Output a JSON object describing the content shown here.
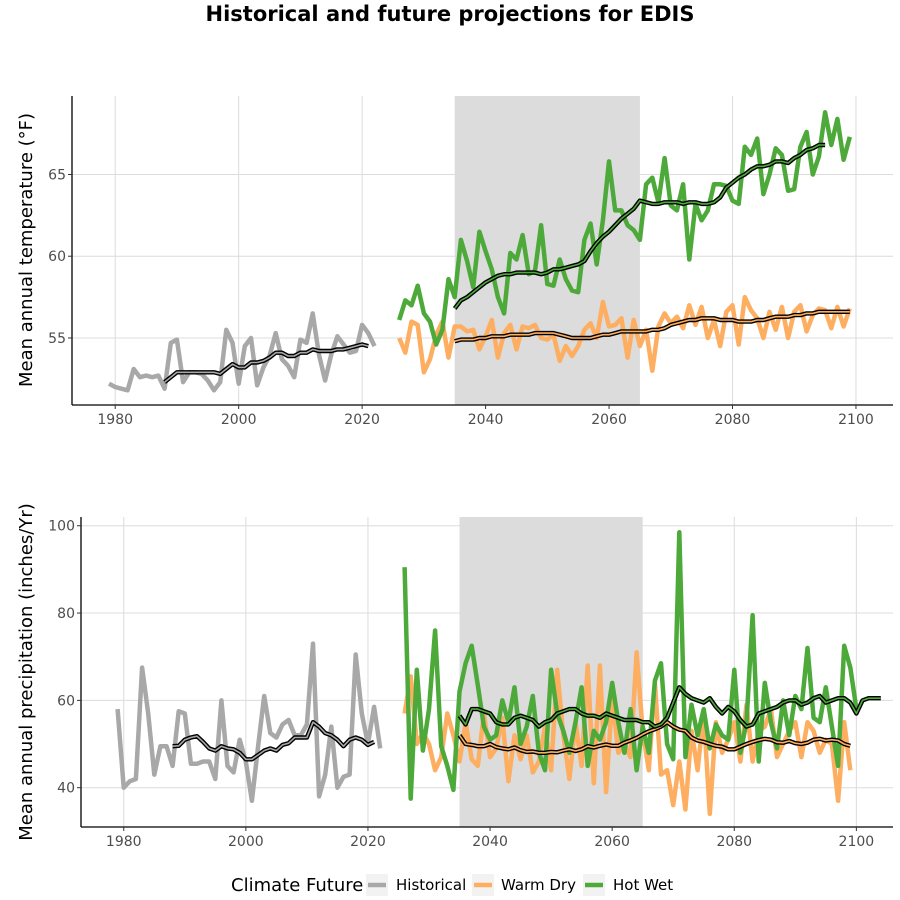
{
  "figure": {
    "title": "Historical and future projections for EDIS"
  },
  "legend": {
    "title": "Climate Future",
    "entries": [
      {
        "label": "Historical",
        "color": "#a8a8a8"
      },
      {
        "label": "Warm Dry",
        "color": "#fdae61"
      },
      {
        "label": "Hot Wet",
        "color": "#4daa3a"
      }
    ]
  },
  "colors": {
    "Historical": "#a8a8a8",
    "Warm Dry": "#fdae61",
    "Hot Wet": "#4daa3a",
    "smooth_outline": "#000000",
    "shade": "#dcdcdc"
  },
  "chart_data": [
    {
      "type": "line",
      "title": "",
      "xlabel": "",
      "ylabel": "Mean annual temperature (°F)",
      "xlim": [
        1973,
        2106
      ],
      "ylim": [
        50.9,
        69.8
      ],
      "xticks": [
        1980,
        2000,
        2020,
        2040,
        2060,
        2080,
        2100
      ],
      "yticks": [
        55,
        60,
        65
      ],
      "grid": true,
      "shaded_period": [
        2035,
        2065
      ],
      "series": [
        {
          "name": "Historical",
          "x_start": 1979,
          "values": [
            52.2,
            52.0,
            51.9,
            51.8,
            53.1,
            52.6,
            52.7,
            52.6,
            52.7,
            51.9,
            54.7,
            54.9,
            52.3,
            52.9,
            52.9,
            52.8,
            52.4,
            51.8,
            52.3,
            55.5,
            54.7,
            52.2,
            54.5,
            55.0,
            52.1,
            53.2,
            53.9,
            55.3,
            53.7,
            53.3,
            52.6,
            54.9,
            54.7,
            56.5,
            54.0,
            52.4,
            54.0,
            55.1,
            54.6,
            54.1,
            54.2,
            55.8,
            55.3,
            54.5
          ]
        },
        {
          "name": "Warm Dry",
          "x_start": 2026,
          "values": [
            55.0,
            54.1,
            56.0,
            55.8,
            52.9,
            53.7,
            55.2,
            56.0,
            53.8,
            55.7,
            55.7,
            55.4,
            55.5,
            54.3,
            55.1,
            56.1,
            53.8,
            55.3,
            55.8,
            54.3,
            55.7,
            55.6,
            55.8,
            55.0,
            54.9,
            55.2,
            53.6,
            54.5,
            53.9,
            54.5,
            55.5,
            55.9,
            55.0,
            57.2,
            55.7,
            55.8,
            56.2,
            53.8,
            56.1,
            54.5,
            55.5,
            53.0,
            55.7,
            56.5,
            55.9,
            56.3,
            55.6,
            57.0,
            55.8,
            56.9,
            55.0,
            56.1,
            54.5,
            56.6,
            57.0,
            54.6,
            57.5,
            56.7,
            56.2,
            55.0,
            56.6,
            55.5,
            56.9,
            55.0,
            56.6,
            57.0,
            55.4,
            56.4,
            56.8,
            56.7,
            55.6,
            56.9,
            55.7,
            56.8
          ]
        },
        {
          "name": "Hot Wet",
          "x_start": 2026,
          "values": [
            56.1,
            57.3,
            57.0,
            58.2,
            56.5,
            56.0,
            54.6,
            55.5,
            58.6,
            57.5,
            61.0,
            59.7,
            58.1,
            61.5,
            60.3,
            59.2,
            57.5,
            56.5,
            60.2,
            59.8,
            61.3,
            58.9,
            59.1,
            61.9,
            58.3,
            58.2,
            59.8,
            58.6,
            57.9,
            57.8,
            61.0,
            62.0,
            59.5,
            62.2,
            65.8,
            62.8,
            62.8,
            61.9,
            61.6,
            61.0,
            64.4,
            64.8,
            63.3,
            66.0,
            63.1,
            62.8,
            64.4,
            59.8,
            63.2,
            62.2,
            62.8,
            64.4,
            64.4,
            64.3,
            63.4,
            63.2,
            66.7,
            66.2,
            67.2,
            63.8,
            65.0,
            66.6,
            66.2,
            64.0,
            64.1,
            66.7,
            67.6,
            65.0,
            66.1,
            68.8,
            66.8,
            68.4,
            65.9,
            67.3
          ]
        }
      ],
      "smoothed": [
        {
          "name": "Historical",
          "x_start": 1988,
          "values": [
            52.3,
            52.6,
            52.9,
            52.9,
            52.9,
            52.9,
            52.9,
            52.9,
            52.9,
            52.8,
            53.1,
            53.4,
            53.2,
            53.2,
            53.5,
            53.5,
            53.6,
            53.8,
            54.1,
            54.1,
            53.9,
            53.9,
            54.1,
            54.1,
            54.3,
            54.2,
            54.2,
            54.2,
            54.3,
            54.3,
            54.4,
            54.5,
            54.6,
            54.5
          ]
        },
        {
          "name": "Warm Dry",
          "x_start": 2035,
          "values": [
            54.8,
            54.9,
            54.9,
            54.9,
            55.0,
            55.0,
            55.1,
            55.1,
            55.1,
            55.2,
            55.2,
            55.2,
            55.2,
            55.3,
            55.3,
            55.3,
            55.3,
            55.2,
            55.1,
            55.0,
            55.0,
            55.0,
            55.0,
            55.1,
            55.2,
            55.2,
            55.3,
            55.4,
            55.4,
            55.4,
            55.4,
            55.4,
            55.5,
            55.5,
            55.6,
            55.8,
            55.9,
            56.0,
            56.1,
            56.1,
            56.2,
            56.2,
            56.2,
            56.1,
            56.1,
            56.1,
            56.0,
            56.0,
            56.0,
            56.1,
            56.1,
            56.2,
            56.3,
            56.3,
            56.3,
            56.4,
            56.4,
            56.5,
            56.5,
            56.6,
            56.6,
            56.6,
            56.6,
            56.6,
            56.6
          ]
        },
        {
          "name": "Hot Wet",
          "x_start": 2035,
          "values": [
            56.8,
            57.3,
            57.5,
            57.8,
            58.1,
            58.4,
            58.6,
            58.8,
            58.9,
            58.9,
            59.0,
            59.0,
            59.0,
            59.0,
            58.9,
            59.0,
            59.2,
            59.2,
            59.3,
            59.4,
            59.5,
            59.7,
            60.3,
            60.8,
            61.2,
            61.5,
            61.9,
            62.3,
            62.6,
            62.9,
            63.4,
            63.3,
            63.2,
            63.2,
            63.3,
            63.3,
            63.3,
            63.2,
            63.3,
            63.3,
            63.2,
            63.2,
            63.3,
            63.6,
            64.2,
            64.5,
            64.8,
            65.0,
            65.3,
            65.5,
            65.5,
            65.6,
            65.8,
            65.8,
            65.7,
            66.0,
            66.2,
            66.5,
            66.6,
            66.8,
            66.8
          ]
        }
      ]
    },
    {
      "type": "line",
      "title": "",
      "xlabel": "",
      "ylabel": "Mean annual precipitation (inches/Yr)",
      "xlim": [
        1973,
        2106
      ],
      "ylim": [
        31.0,
        102.0
      ],
      "xticks": [
        1980,
        2000,
        2020,
        2040,
        2060,
        2080,
        2100
      ],
      "yticks": [
        40,
        60,
        80,
        100
      ],
      "grid": true,
      "shaded_period": [
        2035,
        2065
      ],
      "series": [
        {
          "name": "Historical",
          "x_start": 1979,
          "values": [
            58.0,
            40.0,
            41.5,
            42.0,
            67.5,
            57.0,
            43.0,
            49.5,
            49.5,
            45.0,
            57.5,
            57.0,
            45.5,
            45.5,
            46.0,
            46.0,
            42.0,
            60.0,
            45.0,
            43.5,
            51.0,
            46.0,
            37.0,
            49.5,
            61.0,
            52.5,
            51.5,
            54.5,
            55.5,
            52.0,
            52.0,
            54.5,
            73.0,
            38.0,
            43.0,
            54.0,
            40.0,
            42.5,
            43.0,
            70.5,
            57.0,
            50.0,
            58.5,
            49.0
          ]
        },
        {
          "name": "Warm Dry",
          "x_start": 2026,
          "values": [
            57.0,
            65.5,
            50.0,
            52.5,
            50.0,
            44.0,
            47.0,
            57.0,
            52.0,
            46.0,
            55.0,
            46.5,
            45.0,
            57.0,
            47.0,
            49.0,
            56.0,
            41.5,
            52.0,
            46.5,
            52.0,
            43.5,
            46.0,
            54.0,
            44.0,
            67.0,
            52.0,
            42.0,
            55.0,
            45.0,
            68.0,
            41.0,
            68.0,
            39.0,
            61.0,
            48.0,
            50.0,
            47.0,
            71.0,
            53.0,
            44.0,
            64.0,
            43.0,
            44.0,
            36.0,
            46.0,
            35.0,
            53.0,
            44.0,
            57.0,
            34.0,
            55.0,
            48.0,
            51.0,
            55.0,
            46.0,
            59.0,
            46.0,
            53.0,
            54.0,
            58.0,
            47.0,
            50.0,
            53.0,
            55.0,
            47.0,
            55.0,
            53.0,
            48.0,
            51.0,
            50.0,
            37.0,
            55.0,
            44.0
          ]
        },
        {
          "name": "Hot Wet",
          "x_start": 2026,
          "values": [
            90.5,
            37.5,
            67.0,
            48.5,
            58.0,
            76.0,
            49.5,
            45.0,
            39.5,
            62.0,
            68.5,
            72.5,
            63.5,
            54.0,
            51.0,
            52.0,
            60.0,
            55.0,
            63.0,
            50.0,
            54.0,
            61.0,
            48.0,
            44.0,
            67.0,
            57.0,
            53.0,
            48.0,
            55.0,
            63.0,
            45.0,
            53.0,
            51.0,
            55.0,
            64.0,
            55.0,
            48.0,
            58.0,
            44.0,
            54.0,
            48.0,
            64.5,
            68.5,
            50.0,
            46.5,
            98.5,
            47.0,
            59.0,
            52.0,
            58.0,
            49.0,
            54.5,
            52.0,
            51.0,
            67.0,
            48.0,
            55.0,
            79.5,
            46.0,
            64.0,
            55.0,
            49.0,
            60.0,
            52.0,
            61.0,
            58.0,
            72.0,
            56.0,
            55.0,
            63.0,
            54.0,
            45.0,
            72.5,
            67.5,
            58.0
          ]
        }
      ],
      "smoothed": [
        {
          "name": "Historical",
          "x_start": 1988,
          "values": [
            49.5,
            49.6,
            51.0,
            51.5,
            51.8,
            50.5,
            49.0,
            48.5,
            49.5,
            49.0,
            48.8,
            48.0,
            46.5,
            46.5,
            47.5,
            48.5,
            49.0,
            48.5,
            49.8,
            50.2,
            51.5,
            51.5,
            51.5,
            55.0,
            54.0,
            52.5,
            52.0,
            51.0,
            49.5,
            51.0,
            51.5,
            51.0,
            49.8,
            50.5
          ]
        },
        {
          "name": "Warm Dry",
          "x_start": 2035,
          "values": [
            52.0,
            50.0,
            49.8,
            49.5,
            49.5,
            50.0,
            49.3,
            49.0,
            48.8,
            49.2,
            48.6,
            48.2,
            48.3,
            48.0,
            48.0,
            48.2,
            48.1,
            48.5,
            48.8,
            48.4,
            48.8,
            49.5,
            49.2,
            49.6,
            49.9,
            49.6,
            49.6,
            50.3,
            50.8,
            51.4,
            52.2,
            52.9,
            53.4,
            54.0,
            55.0,
            54.0,
            53.3,
            53.0,
            51.5,
            50.8,
            50.5,
            50.0,
            49.6,
            49.4,
            48.8,
            48.8,
            49.4,
            50.0,
            50.5,
            50.9,
            51.2,
            51.0,
            50.4,
            50.3,
            50.7,
            50.2,
            50.0,
            50.3,
            51.0,
            51.2,
            50.8,
            51.0,
            50.8,
            50.0,
            49.6
          ]
        },
        {
          "name": "Hot Wet",
          "x_start": 2035,
          "values": [
            56.5,
            54.5,
            58.0,
            58.0,
            57.5,
            57.0,
            55.0,
            54.5,
            54.5,
            56.0,
            56.5,
            56.0,
            55.5,
            54.0,
            55.0,
            55.5,
            57.0,
            57.5,
            58.0,
            58.0,
            57.0,
            56.5,
            56.5,
            56.0,
            57.0,
            56.5,
            56.0,
            55.5,
            55.5,
            55.5,
            55.0,
            55.0,
            54.0,
            54.5,
            56.0,
            59.5,
            63.0,
            61.5,
            60.5,
            60.0,
            59.5,
            60.5,
            58.5,
            57.0,
            58.5,
            57.5,
            55.5,
            54.0,
            54.5,
            57.0,
            57.5,
            58.0,
            58.5,
            59.5,
            60.0,
            60.0,
            59.0,
            59.5,
            60.5,
            61.0,
            59.5,
            60.0,
            60.5,
            60.5,
            59.5,
            57.0,
            60.0,
            60.5,
            60.5,
            60.5
          ]
        }
      ]
    }
  ]
}
